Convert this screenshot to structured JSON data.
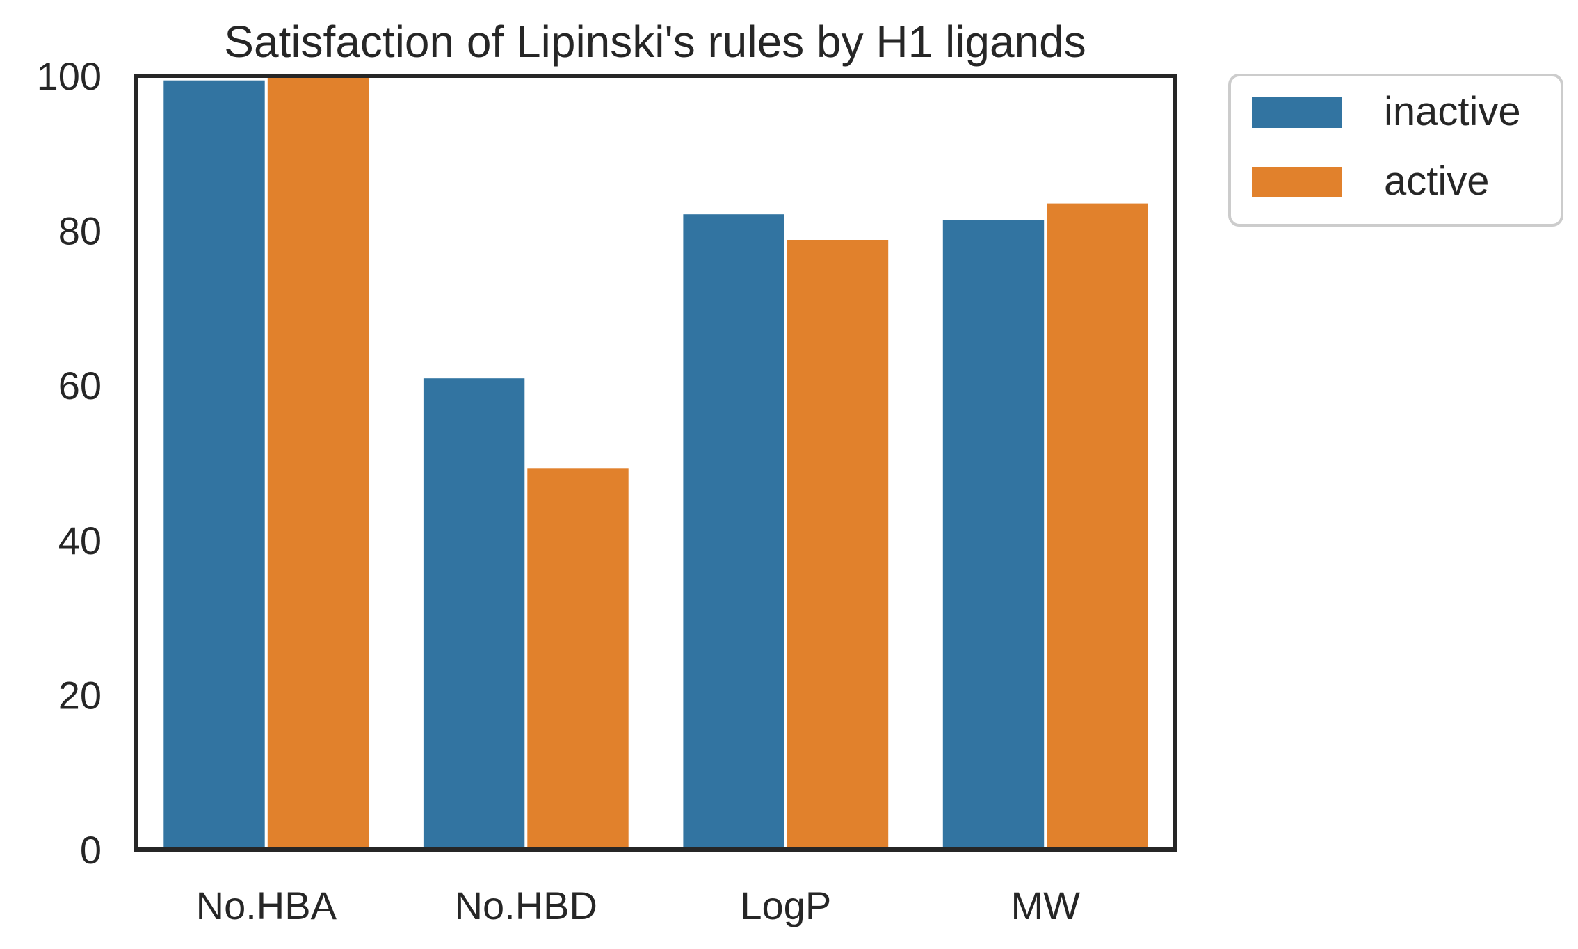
{
  "chart_data": {
    "type": "bar",
    "title": "Satisfaction of Lipinski's rules by H1 ligands",
    "xlabel": "",
    "ylabel": "",
    "categories": [
      "No.HBA",
      "No.HBD",
      "LogP",
      "MW"
    ],
    "series": [
      {
        "name": "inactive",
        "color": "#3274a1",
        "values": [
          99.4,
          60.9,
          82.1,
          81.4
        ]
      },
      {
        "name": "active",
        "color": "#e1812c",
        "values": [
          100.0,
          49.3,
          78.8,
          83.5
        ]
      }
    ],
    "ylim": [
      0,
      100
    ],
    "yticks": [
      0,
      20,
      40,
      60,
      80,
      100
    ],
    "grid": false,
    "legend_position": "outside-top-right"
  }
}
